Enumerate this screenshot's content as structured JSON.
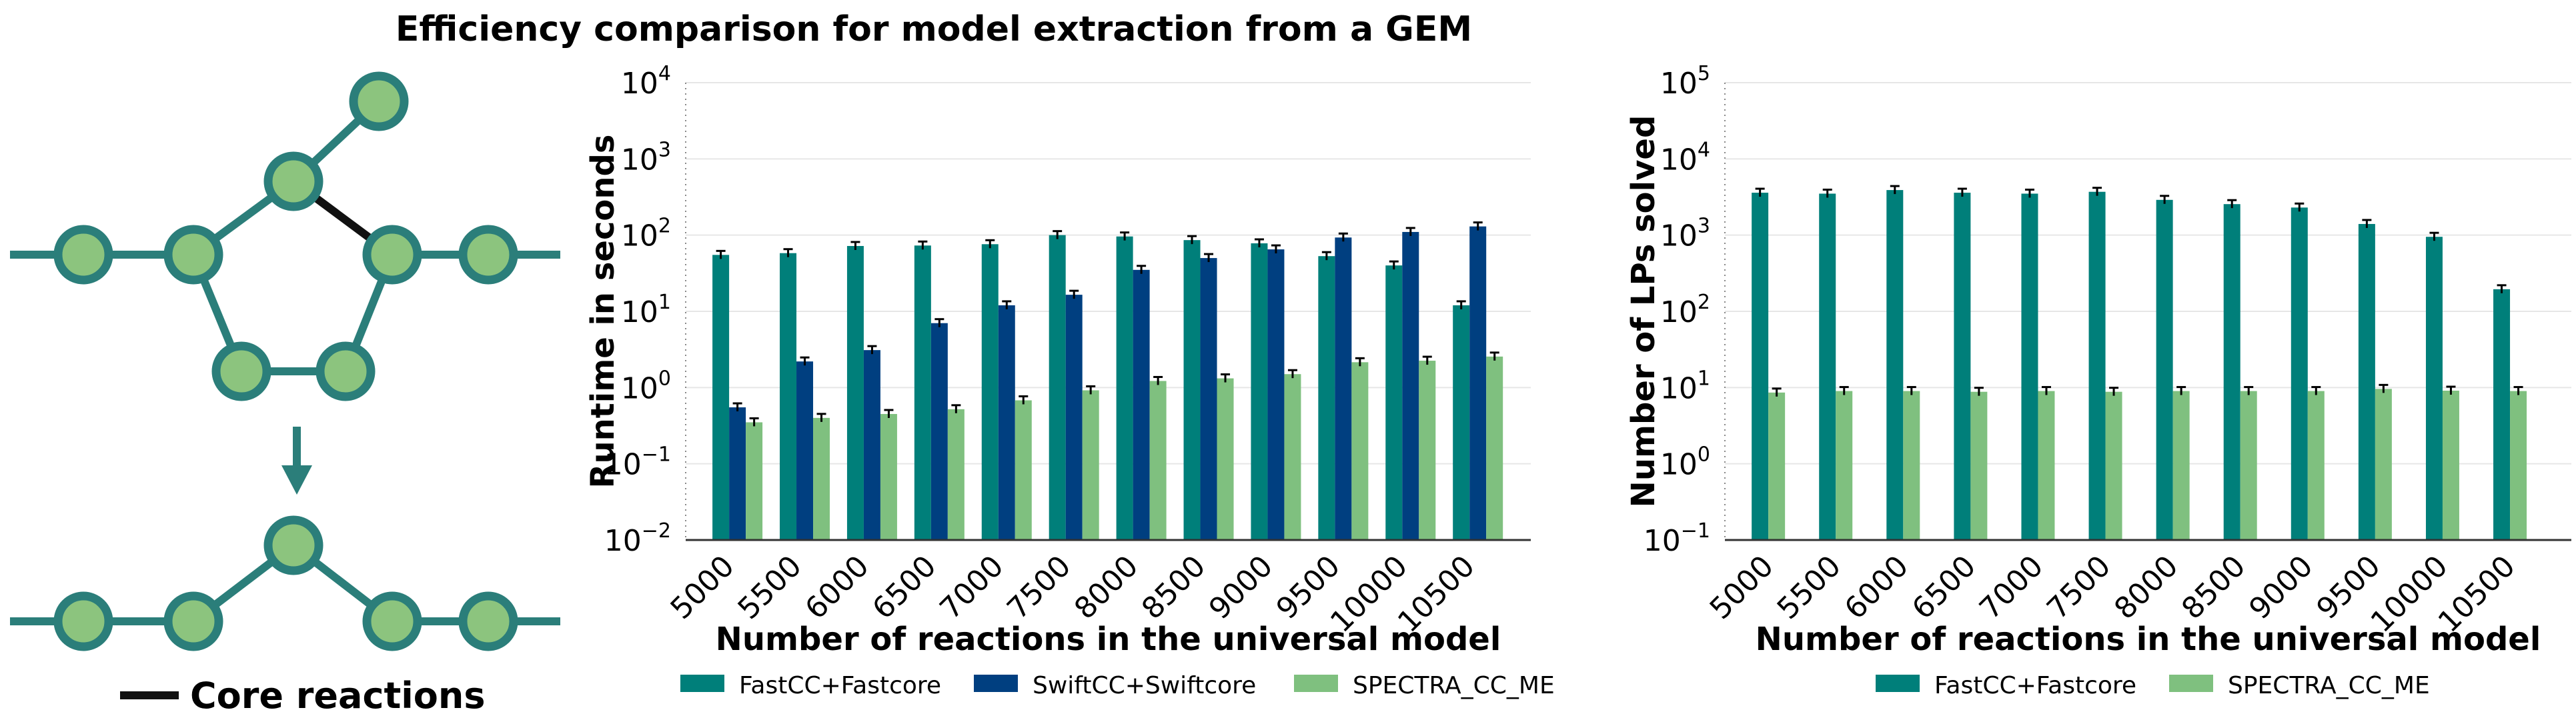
{
  "figure_title": "Efficiency comparison for model extraction from a GEM",
  "diagram": {
    "legend_label": "Core reactions",
    "colors": {
      "edge": "#2b7e7a",
      "node_fill": "#8cc47e",
      "core_edge": "#111111"
    }
  },
  "chart_data": [
    {
      "type": "bar",
      "title": "",
      "xlabel": "Number of reactions in the universal model",
      "ylabel": "Runtime in seconds",
      "yscale": "log",
      "ylim": [
        0.01,
        10000
      ],
      "yticks": [
        {
          "base": "10",
          "exp": "−2",
          "value": 0.01
        },
        {
          "base": "10",
          "exp": "−1",
          "value": 0.1
        },
        {
          "base": "10",
          "exp": "0",
          "value": 1
        },
        {
          "base": "10",
          "exp": "1",
          "value": 10
        },
        {
          "base": "10",
          "exp": "2",
          "value": 100
        },
        {
          "base": "10",
          "exp": "3",
          "value": 1000
        },
        {
          "base": "10",
          "exp": "4",
          "value": 10000
        }
      ],
      "grid": "horizontal",
      "legend_position": "bottom",
      "categories": [
        "5000",
        "5500",
        "6000",
        "6500",
        "7000",
        "7500",
        "8000",
        "8500",
        "9000",
        "9500",
        "10000",
        "10500"
      ],
      "series": [
        {
          "name": "FastCC+Fastcore",
          "color": "#007f7a",
          "values": [
            55,
            58,
            72,
            73,
            76,
            100,
            96,
            86,
            78,
            53,
            40,
            12
          ]
        },
        {
          "name": "SwiftCC+Swiftcore",
          "color": "#003f80",
          "values": [
            0.55,
            2.2,
            3.1,
            7.0,
            12,
            16.5,
            35,
            50,
            65,
            93,
            110,
            130
          ]
        },
        {
          "name": "SPECTRA_CC_ME",
          "color": "#7fc07f",
          "values": [
            0.35,
            0.4,
            0.45,
            0.52,
            0.68,
            0.92,
            1.22,
            1.32,
            1.5,
            2.15,
            2.25,
            2.55
          ]
        }
      ]
    },
    {
      "type": "bar",
      "title": "",
      "xlabel": "Number of reactions in the universal model",
      "ylabel": "Number of LPs solved",
      "yscale": "log",
      "ylim": [
        0.1,
        100000
      ],
      "yticks": [
        {
          "base": "10",
          "exp": "−1",
          "value": 0.1
        },
        {
          "base": "10",
          "exp": "0",
          "value": 1
        },
        {
          "base": "10",
          "exp": "1",
          "value": 10
        },
        {
          "base": "10",
          "exp": "2",
          "value": 100
        },
        {
          "base": "10",
          "exp": "3",
          "value": 1000
        },
        {
          "base": "10",
          "exp": "4",
          "value": 10000
        },
        {
          "base": "10",
          "exp": "5",
          "value": 100000
        }
      ],
      "grid": "horizontal",
      "legend_position": "bottom",
      "categories": [
        "5000",
        "5500",
        "6000",
        "6500",
        "7000",
        "7500",
        "8000",
        "8500",
        "9000",
        "9500",
        "10000",
        "10500"
      ],
      "series": [
        {
          "name": "FastCC+Fastcore",
          "color": "#007f7a",
          "values": [
            3600,
            3500,
            3900,
            3600,
            3500,
            3700,
            2900,
            2550,
            2300,
            1400,
            950,
            195
          ]
        },
        {
          "name": "SPECTRA_CC_ME",
          "color": "#7fc07f",
          "values": [
            8.6,
            9,
            9,
            8.8,
            9,
            8.8,
            9,
            9,
            9,
            9.6,
            9.1,
            9
          ]
        }
      ]
    }
  ]
}
